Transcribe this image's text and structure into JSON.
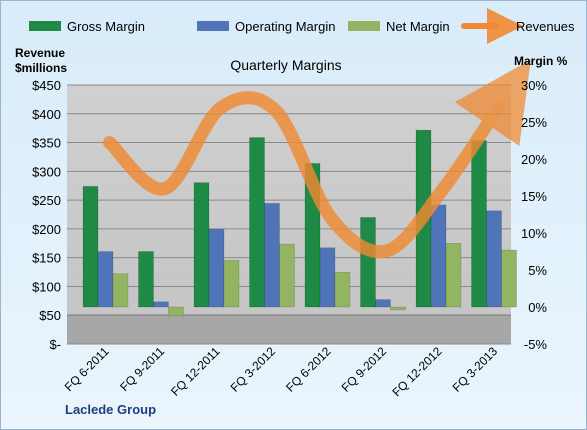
{
  "chart_data": {
    "type": "bar",
    "title": "Quarterly Margins",
    "company_label": "Laclede Group",
    "left_axis_label_lines": [
      "Revenue",
      "$millions"
    ],
    "right_axis_label": "Margin %",
    "categories": [
      "FQ 6-2011",
      "FQ 9-2011",
      "FQ 12-2011",
      "FQ 3-2012",
      "FQ 6-2012",
      "FQ 9-2012",
      "FQ 12-2012",
      "FQ 3-2013"
    ],
    "ylim_left": [
      0,
      450
    ],
    "ylim_right": [
      -5,
      30
    ],
    "left_ticks": [
      "$-",
      "$50",
      "$100",
      "$150",
      "$200",
      "$250",
      "$300",
      "$350",
      "$400",
      "$450"
    ],
    "right_ticks": [
      "-5%",
      "0%",
      "5%",
      "10%",
      "15%",
      "20%",
      "25%",
      "30%"
    ],
    "grid": true,
    "legend_position": "top",
    "series": [
      {
        "name": "Gross Margin",
        "axis": "right",
        "color": "#1e8a45",
        "values": [
          16.3,
          7.5,
          16.8,
          22.9,
          19.4,
          12.1,
          23.9,
          22.5
        ]
      },
      {
        "name": "Operating Margin",
        "axis": "right",
        "color": "#4f74b8",
        "values": [
          7.5,
          0.7,
          10.5,
          14.0,
          8.0,
          1.0,
          13.8,
          13.0
        ]
      },
      {
        "name": "Net Margin",
        "axis": "right",
        "color": "#93b460",
        "values": [
          4.5,
          -1.2,
          6.3,
          8.5,
          4.7,
          -0.4,
          8.6,
          7.7
        ]
      },
      {
        "name": "Revenues",
        "axis": "left",
        "type": "line",
        "color": "#f08a32",
        "values": [
          350,
          270,
          410,
          405,
          218,
          162,
          268,
          410
        ]
      }
    ]
  }
}
